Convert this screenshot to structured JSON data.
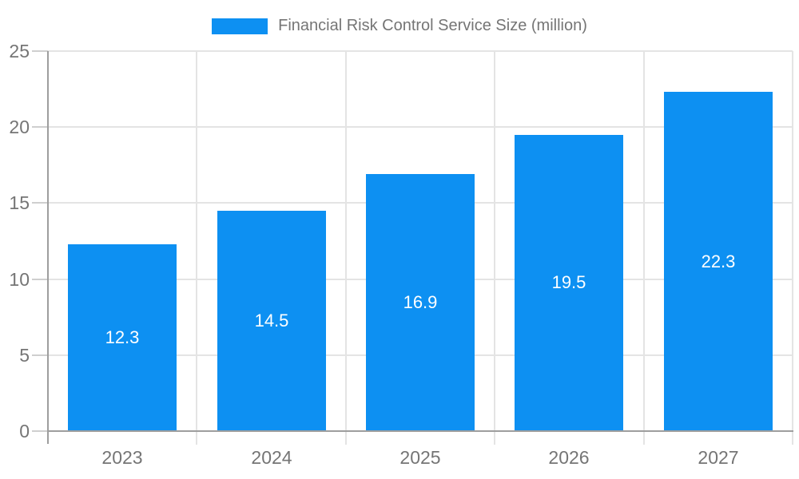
{
  "chart_data": {
    "type": "bar",
    "title": "Financial Risk Control Service Size (million)",
    "categories": [
      "2023",
      "2024",
      "2025",
      "2026",
      "2027"
    ],
    "values": [
      12.3,
      14.5,
      16.9,
      19.5,
      22.3
    ],
    "value_labels": [
      "12.3",
      "14.5",
      "16.9",
      "19.5",
      "22.3"
    ],
    "ylabel": "",
    "xlabel": "",
    "ylim": [
      0,
      25
    ],
    "yticks": [
      0,
      5,
      10,
      15,
      20,
      25
    ],
    "grid": true,
    "legend_position": "top-center",
    "bar_color": "#0d90f2",
    "bar_label_color": "#ffffff",
    "tick_text_color": "#757575",
    "axis_color": "#9e9e9e",
    "grid_color": "#e4e4e4",
    "tick_mark_color": "#cfcfcf"
  }
}
